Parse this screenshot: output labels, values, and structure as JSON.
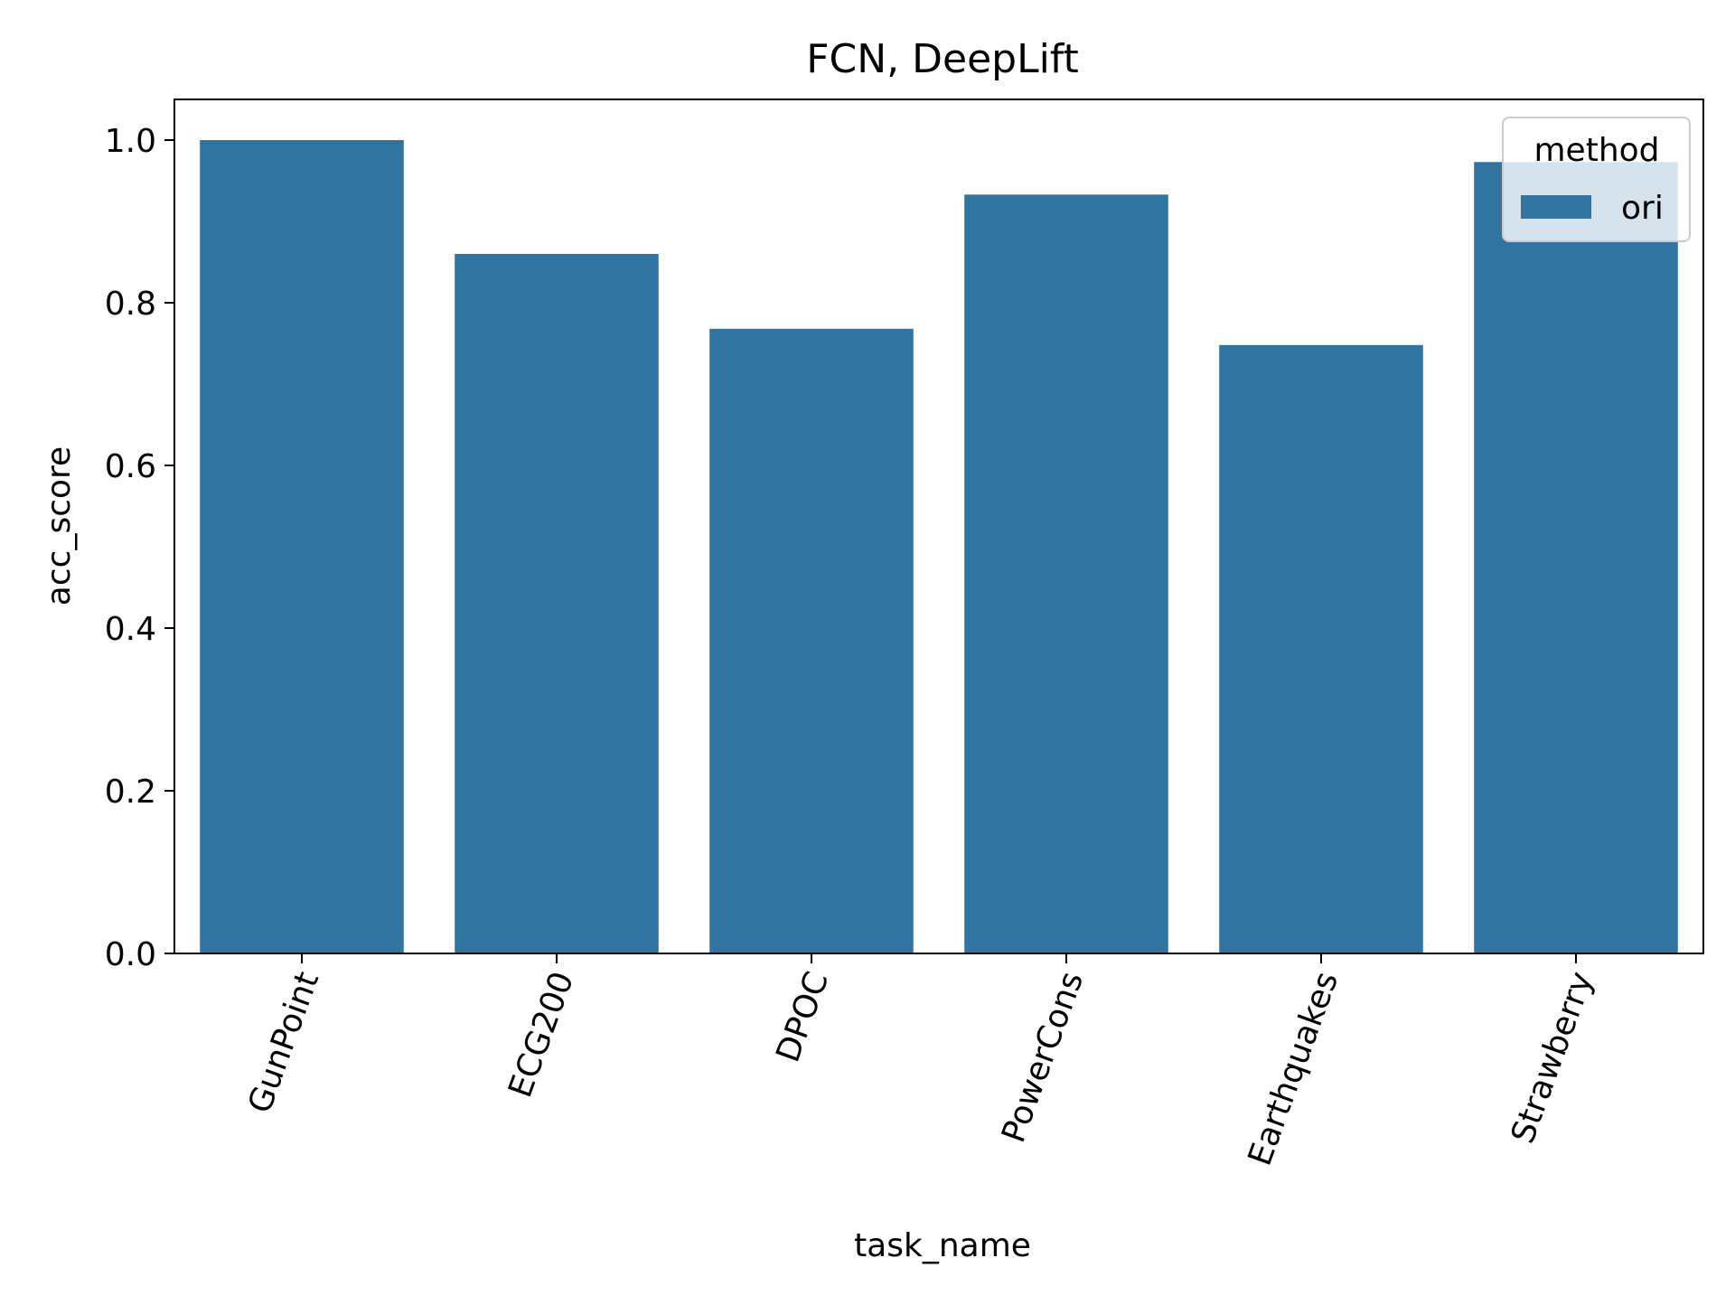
{
  "chart_data": {
    "type": "bar",
    "title": "FCN, DeepLift",
    "xlabel": "task_name",
    "ylabel": "acc_score",
    "categories": [
      "GunPoint",
      "ECG200",
      "DPOC",
      "PowerCons",
      "Earthquakes",
      "Strawberry"
    ],
    "series": [
      {
        "name": "ori",
        "values": [
          1.0,
          0.86,
          0.768,
          0.933,
          0.748,
          0.973
        ]
      }
    ],
    "ylim": [
      0,
      1.05
    ],
    "yticks": [
      "0.0",
      "0.2",
      "0.4",
      "0.6",
      "0.8",
      "1.0"
    ],
    "xtick_rotation_deg": 70,
    "grid": false,
    "legend": {
      "title": "method",
      "placement": "top-right"
    },
    "colors": {
      "bar": "#3274a1",
      "axis": "#000000",
      "background": "#ffffff"
    }
  }
}
